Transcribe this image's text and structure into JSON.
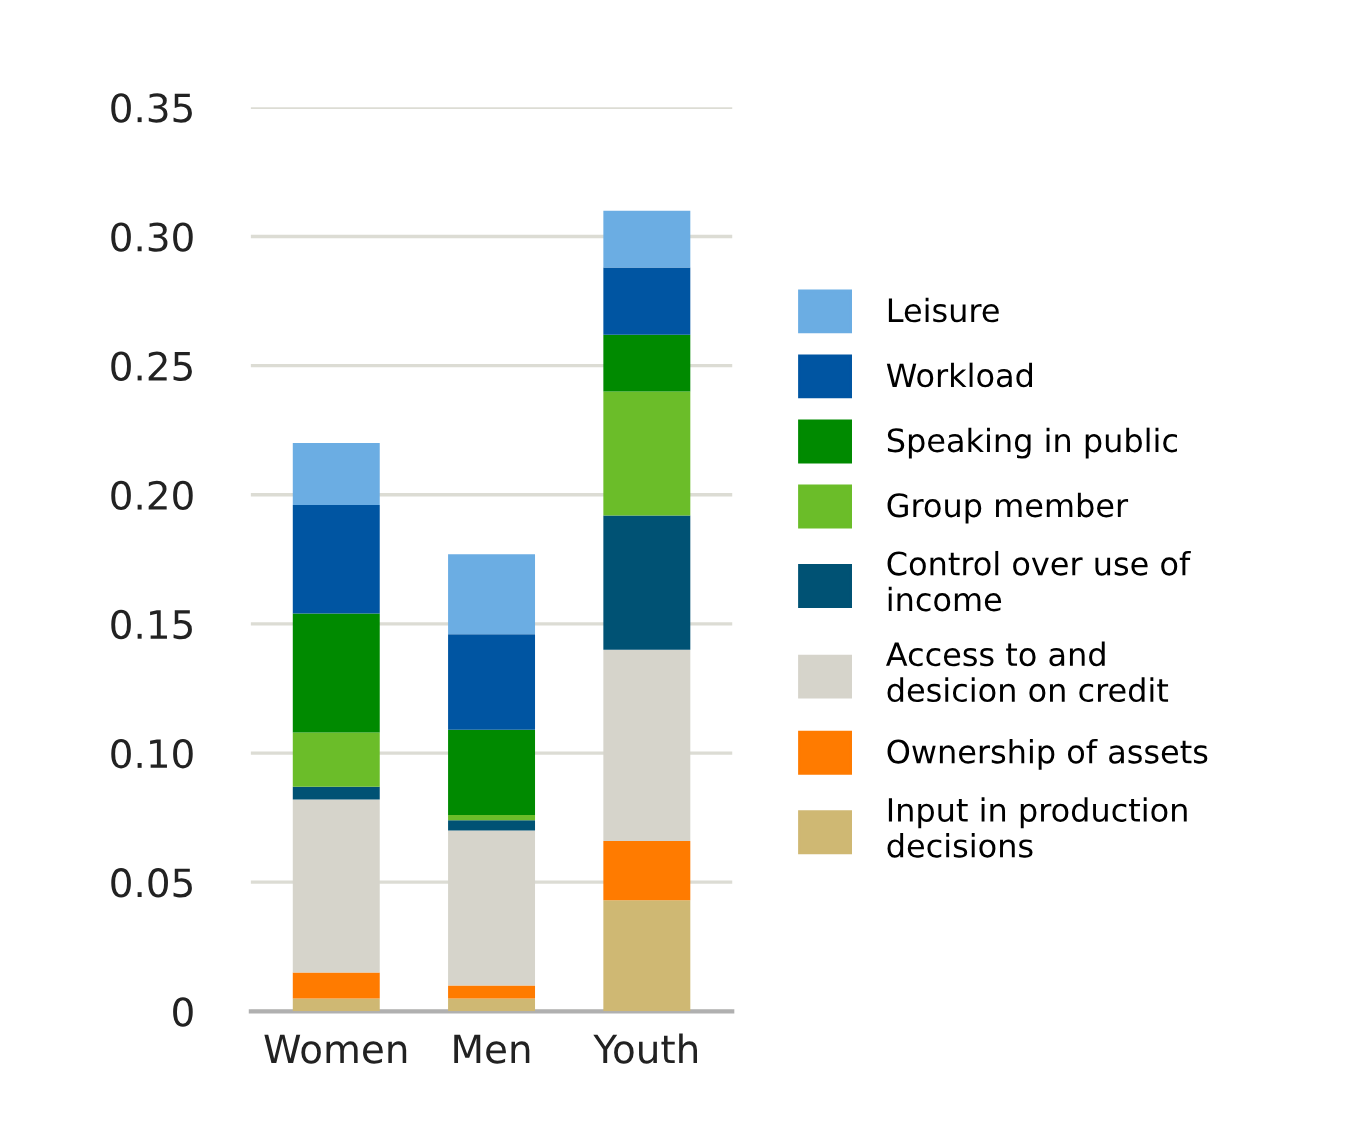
{
  "chart_data": {
    "type": "bar",
    "stacked": true,
    "categories": [
      "Women",
      "Men",
      "Youth"
    ],
    "series": [
      {
        "name": "Input in production\ndecisions",
        "color": "#cfb873",
        "values": [
          0.005,
          0.005,
          0.043
        ]
      },
      {
        "name": "Ownership of assets",
        "color": "#ff7b00",
        "values": [
          0.01,
          0.005,
          0.023
        ]
      },
      {
        "name": "Access to and\ndesicion on credit",
        "color": "#d6d4cb",
        "values": [
          0.067,
          0.06,
          0.074
        ]
      },
      {
        "name": "Control over use of\nincome",
        "color": "#005274",
        "values": [
          0.005,
          0.004,
          0.052
        ]
      },
      {
        "name": "Group member",
        "color": "#6bbd29",
        "values": [
          0.021,
          0.002,
          0.048
        ]
      },
      {
        "name": "Speaking in public",
        "color": "#008a00",
        "values": [
          0.046,
          0.033,
          0.022
        ]
      },
      {
        "name": "Workload",
        "color": "#0055a2",
        "values": [
          0.042,
          0.037,
          0.026
        ]
      },
      {
        "name": "Leisure",
        "color": "#6badE3",
        "values": [
          0.024,
          0.031,
          0.022
        ]
      }
    ],
    "ylim": [
      0,
      0.35
    ],
    "yticks": [
      0,
      0.05,
      {
        "value": 0.1,
        "label": "0.10"
      },
      0.15,
      {
        "value": 0.2,
        "label": "0.20"
      },
      0.25,
      {
        "value": 0.3,
        "label": "0.30"
      },
      0.35
    ],
    "grid": "y",
    "legend": "right"
  }
}
